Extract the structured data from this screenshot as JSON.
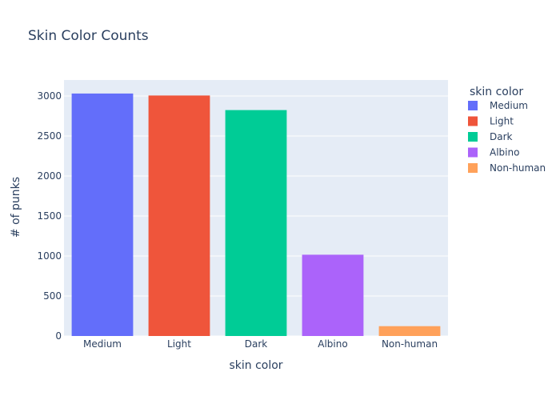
{
  "chart_data": {
    "type": "bar",
    "title": "Skin Color Counts",
    "xlabel": "skin color",
    "ylabel": "# of punks",
    "categories": [
      "Medium",
      "Light",
      "Dark",
      "Albino",
      "Non-human"
    ],
    "values": [
      3031,
      3006,
      2824,
      1016,
      123
    ],
    "colors": [
      "#636efa",
      "#ef553b",
      "#00cc96",
      "#ab63fa",
      "#ffa15a"
    ],
    "ylim": [
      0,
      3200
    ],
    "yticks": [
      0,
      500,
      1000,
      1500,
      2000,
      2500,
      3000
    ],
    "grid": true,
    "legend": {
      "title": "skin color",
      "placement": "right",
      "entries": [
        "Medium",
        "Light",
        "Dark",
        "Albino",
        "Non-human"
      ]
    },
    "plot_background": "#e5ecf6"
  }
}
